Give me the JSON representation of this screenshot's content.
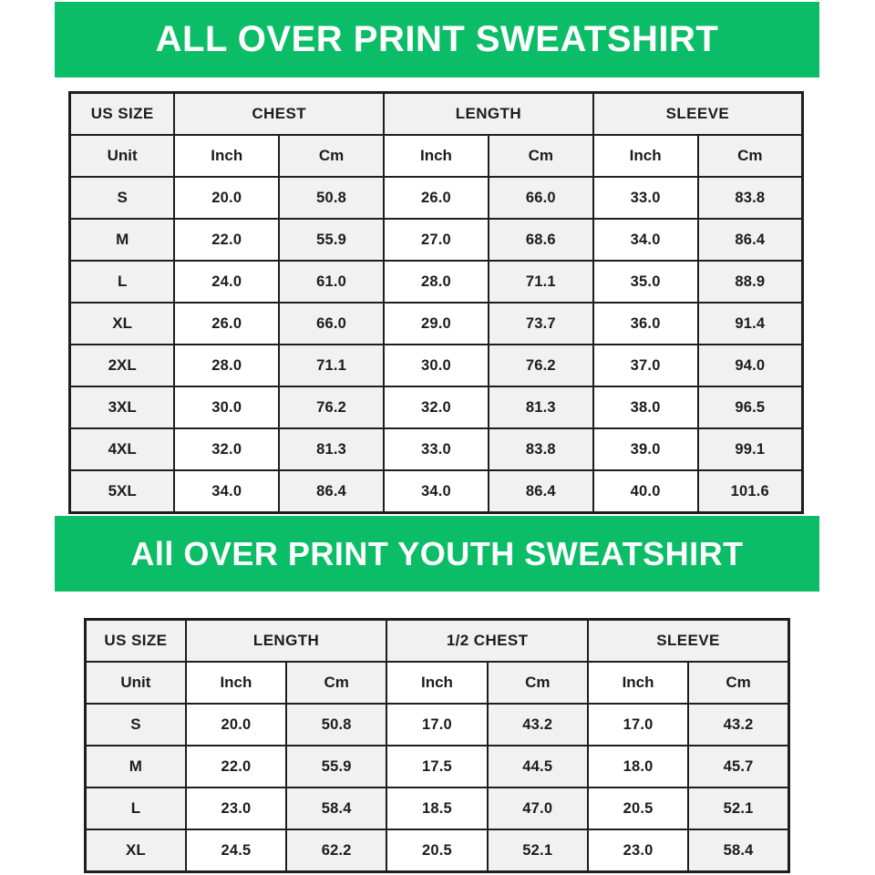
{
  "colors": {
    "accent_green": "#0cbd68",
    "cell_shaded": "#f1f1f1",
    "border": "#1e1e1e",
    "text": "#1c1c1c",
    "banner_text": "#ffffff"
  },
  "banners": {
    "adult": "ALL OVER PRINT SWEATSHIRT",
    "youth": "All OVER PRINT YOUTH SWEATSHIRT"
  },
  "chart_data": [
    {
      "type": "table",
      "title": "ALL OVER PRINT SWEATSHIRT",
      "group_headers": [
        "US SIZE",
        "CHEST",
        "LENGTH",
        "SLEEVE"
      ],
      "unit_row": [
        "Unit",
        "Inch",
        "Cm",
        "Inch",
        "Cm",
        "Inch",
        "Cm"
      ],
      "rows": [
        [
          "S",
          "20.0",
          "50.8",
          "26.0",
          "66.0",
          "33.0",
          "83.8"
        ],
        [
          "M",
          "22.0",
          "55.9",
          "27.0",
          "68.6",
          "34.0",
          "86.4"
        ],
        [
          "L",
          "24.0",
          "61.0",
          "28.0",
          "71.1",
          "35.0",
          "88.9"
        ],
        [
          "XL",
          "26.0",
          "66.0",
          "29.0",
          "73.7",
          "36.0",
          "91.4"
        ],
        [
          "2XL",
          "28.0",
          "71.1",
          "30.0",
          "76.2",
          "37.0",
          "94.0"
        ],
        [
          "3XL",
          "30.0",
          "76.2",
          "32.0",
          "81.3",
          "38.0",
          "96.5"
        ],
        [
          "4XL",
          "32.0",
          "81.3",
          "33.0",
          "83.8",
          "39.0",
          "99.1"
        ],
        [
          "5XL",
          "34.0",
          "86.4",
          "34.0",
          "86.4",
          "40.0",
          "101.6"
        ]
      ]
    },
    {
      "type": "table",
      "title": "All OVER PRINT YOUTH SWEATSHIRT",
      "group_headers": [
        "US SIZE",
        "LENGTH",
        "1/2 CHEST",
        "SLEEVE"
      ],
      "unit_row": [
        "Unit",
        "Inch",
        "Cm",
        "Inch",
        "Cm",
        "Inch",
        "Cm"
      ],
      "rows": [
        [
          "S",
          "20.0",
          "50.8",
          "17.0",
          "43.2",
          "17.0",
          "43.2"
        ],
        [
          "M",
          "22.0",
          "55.9",
          "17.5",
          "44.5",
          "18.0",
          "45.7"
        ],
        [
          "L",
          "23.0",
          "58.4",
          "18.5",
          "47.0",
          "20.5",
          "52.1"
        ],
        [
          "XL",
          "24.5",
          "62.2",
          "20.5",
          "52.1",
          "23.0",
          "58.4"
        ]
      ]
    }
  ]
}
